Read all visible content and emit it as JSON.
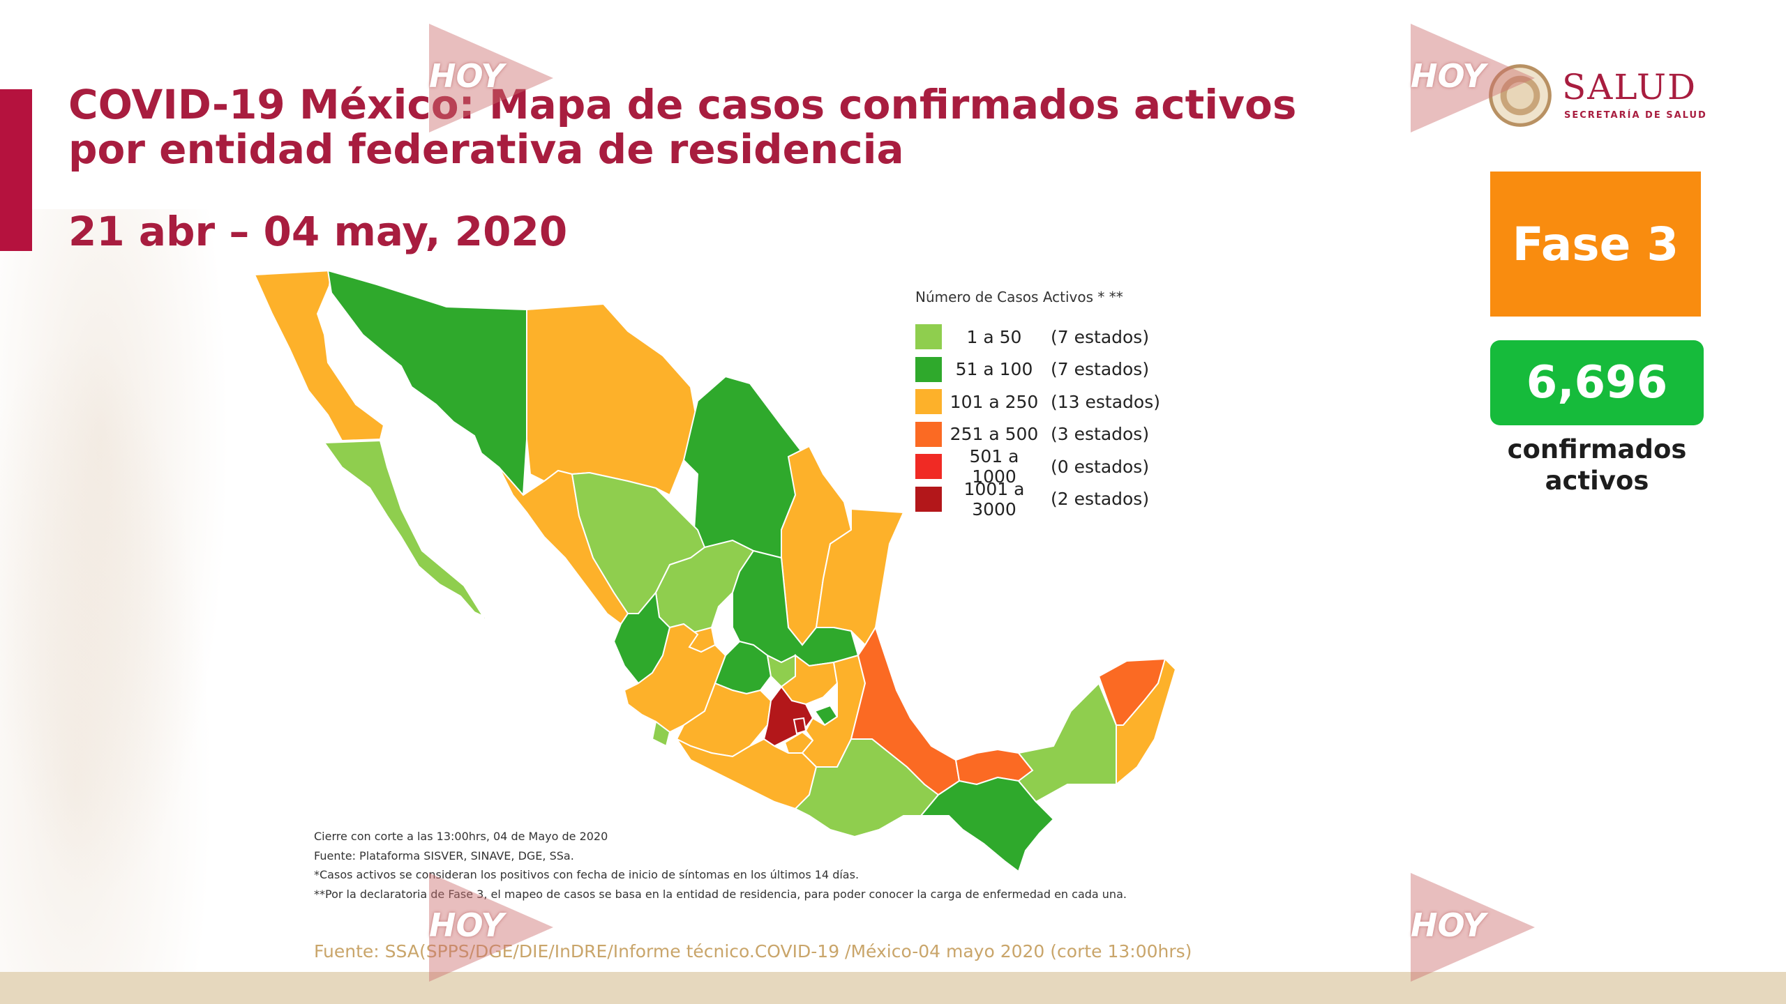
{
  "header": {
    "title": "COVID-19 México: Mapa de casos confirmados activos por entidad federativa de residencia",
    "date_range": "21 abr – 04 may, 2020"
  },
  "logo": {
    "name": "SALUD",
    "subtitle": "SECRETARÍA DE SALUD"
  },
  "phase": {
    "label": "Fase 3"
  },
  "active_cases": {
    "count": "6,696",
    "label": "confirmados activos"
  },
  "legend": {
    "title": "Número de Casos Activos * **",
    "items": [
      {
        "range": "1 a 50",
        "count": "(7 estados)",
        "color": "#8fce4e"
      },
      {
        "range": "51 a 100",
        "count": "(7 estados)",
        "color": "#2fa92c"
      },
      {
        "range": "101 a 250",
        "count": "(13 estados)",
        "color": "#fdb12a"
      },
      {
        "range": "251 a 500",
        "count": "(3 estados)",
        "color": "#fb6a23"
      },
      {
        "range": "501 a 1000",
        "count": "(0 estados)",
        "color": "#f02a24"
      },
      {
        "range": "1001 a 3000",
        "count": "(2 estados)",
        "color": "#b3171a"
      }
    ]
  },
  "notes": [
    "Cierre con corte a las 13:00hrs, 04 de Mayo de 2020",
    "Fuente: Plataforma SISVER, SINAVE, DGE, SSa.",
    "*Casos activos se consideran los positivos con fecha de inicio de síntomas en los últimos 14 días.",
    "**Por la declaratoria de Fase 3, el mapeo de casos se basa en la entidad de residencia, para poder conocer la carga de enfermedad en cada una."
  ],
  "source": "Fuente: SSA(SPPS/DGE/DIE/InDRE/Informe técnico.COVID-19 /México-04 mayo 2020 (corte 13:00hrs)",
  "watermark": {
    "text": "HOY"
  }
}
